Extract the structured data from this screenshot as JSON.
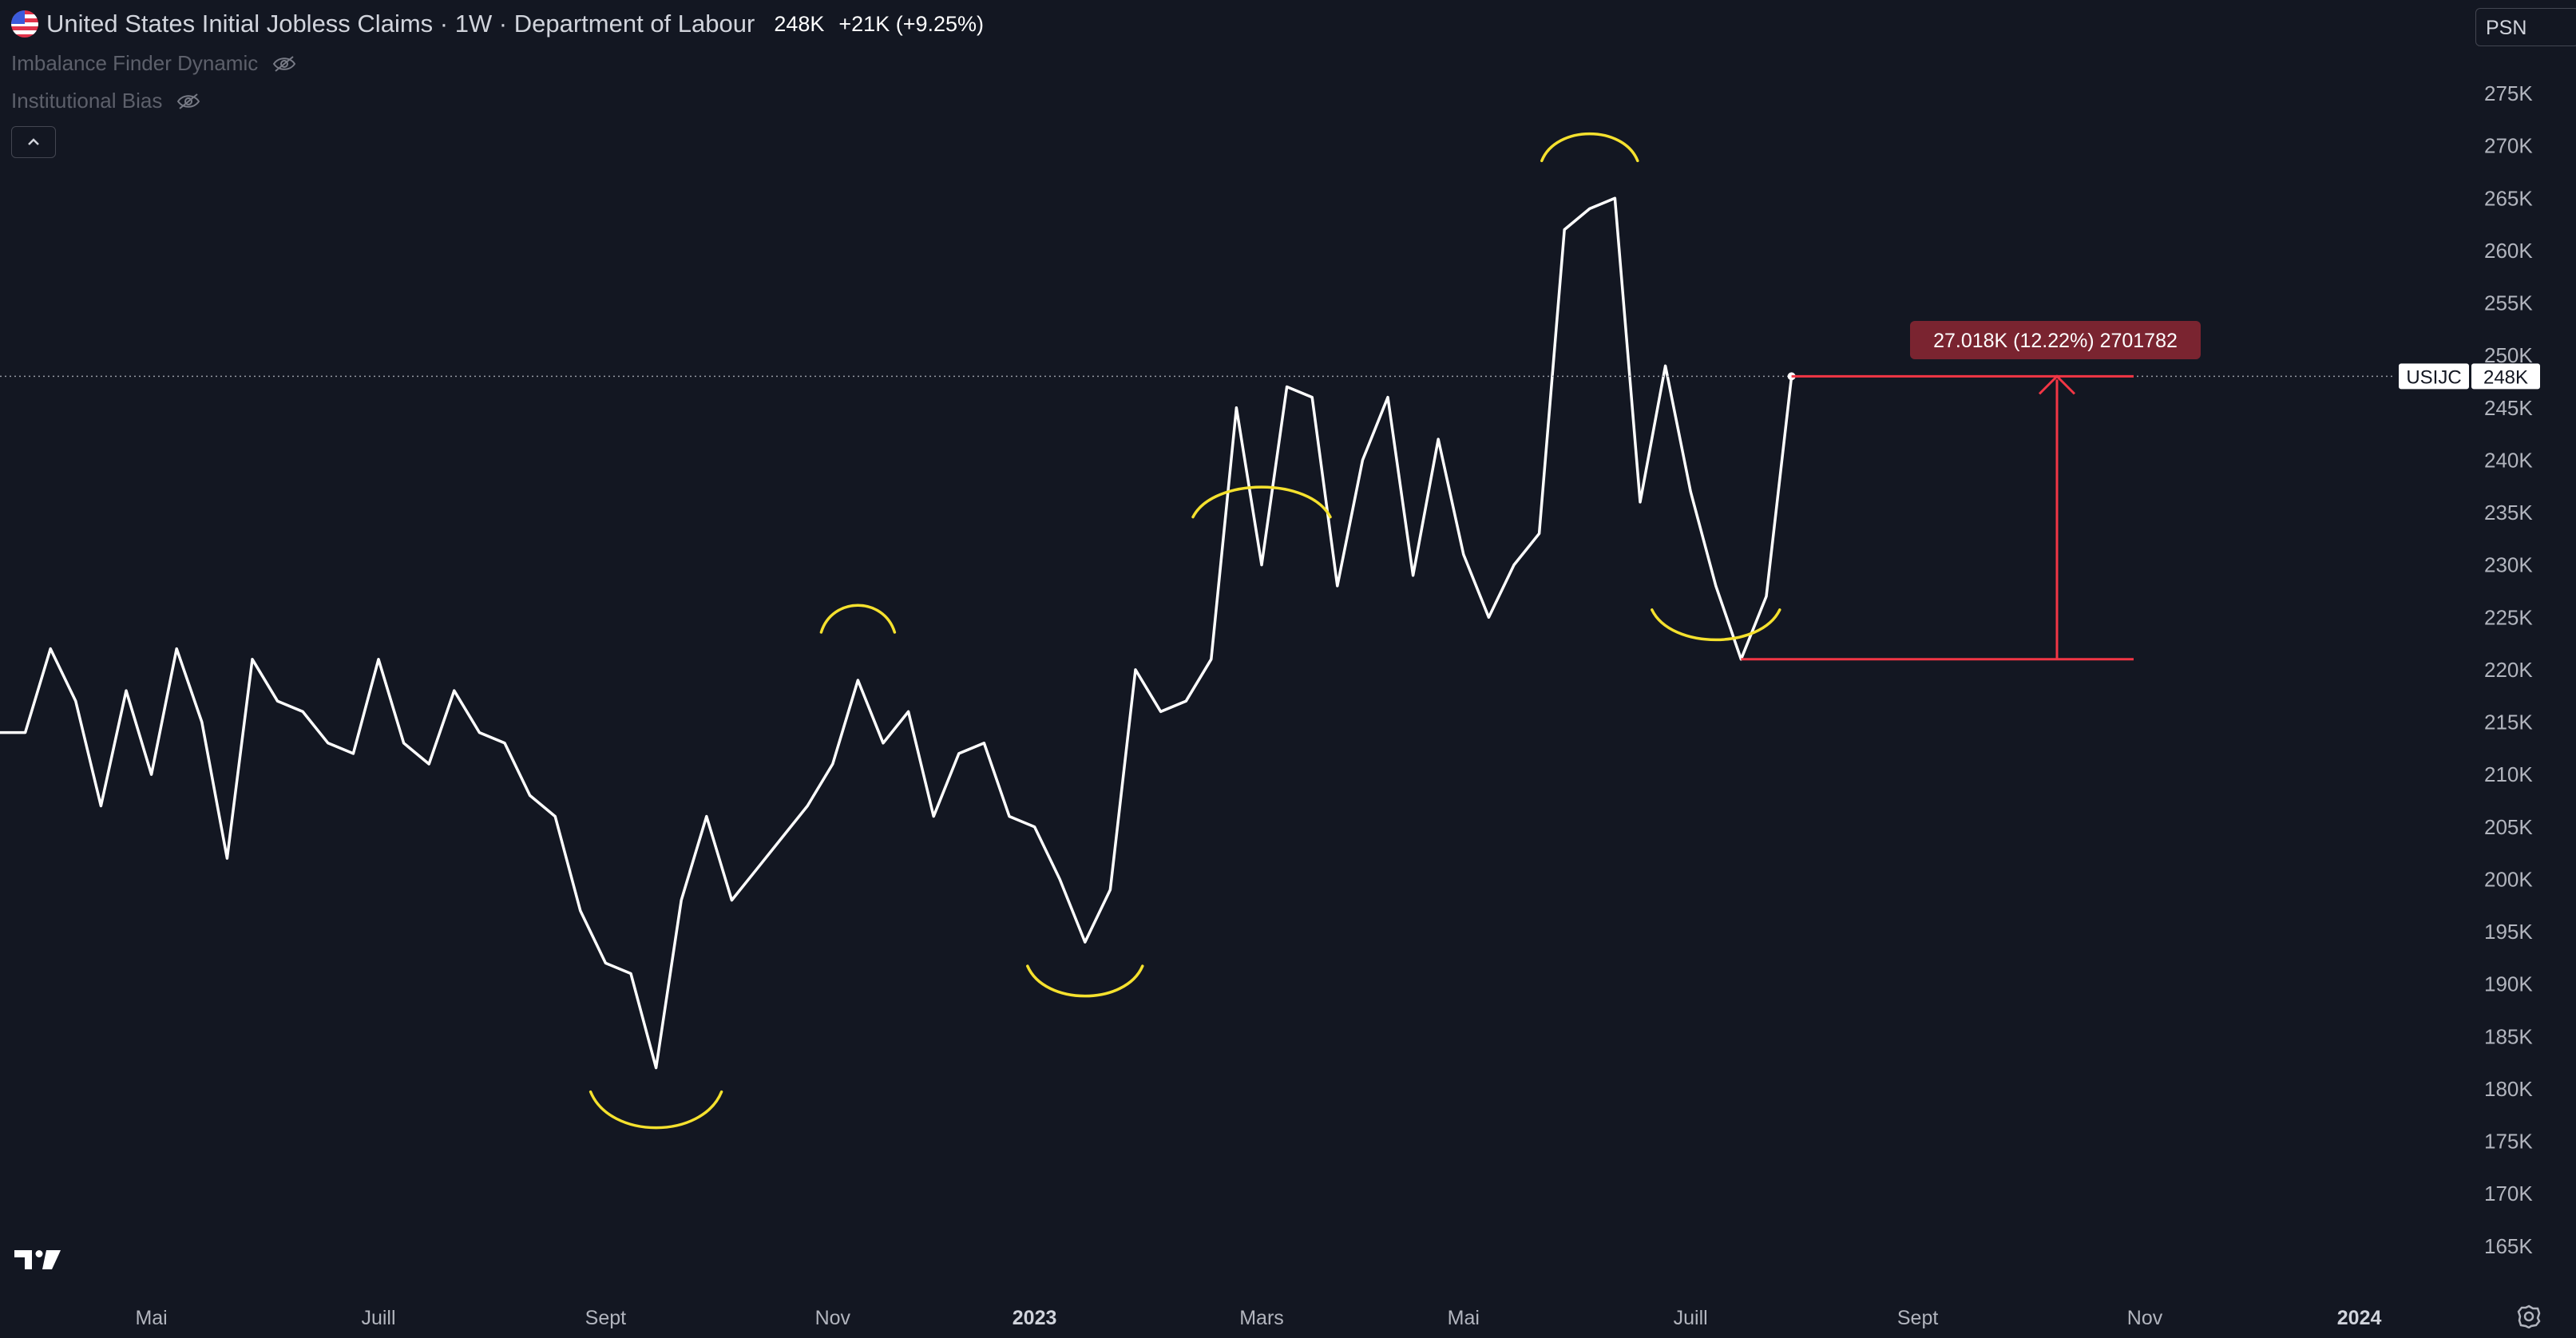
{
  "header": {
    "title": "United States Initial Jobless Claims · 1W · Department of Labour",
    "last_value": "248K",
    "change": "+21K (+9.25%)",
    "indicators": [
      {
        "name": "Imbalance Finder Dynamic",
        "icon": "eye-off-icon"
      },
      {
        "name": "Institutional Bias",
        "icon": "eye-off-icon"
      }
    ],
    "collapse_icon": "chevron-up-icon"
  },
  "top_right": {
    "label": "PSN"
  },
  "price_label": {
    "symbol": "USIJC",
    "value": "248K"
  },
  "measure_tooltip": {
    "text": "27.018K (12.22%) 2701782"
  },
  "colors": {
    "background": "#131722",
    "line": "#ffffff",
    "annotation": "#f5e12e",
    "measure": "#f23645",
    "tooltip_bg": "#7a2430",
    "axis_text": "#b2b5be"
  },
  "chart_data": {
    "type": "line",
    "title": "United States Initial Jobless Claims",
    "xlabel": "",
    "ylabel": "",
    "ylim": [
      160,
      278
    ],
    "y_unit": "K",
    "y_ticks": [
      "275K",
      "270K",
      "265K",
      "260K",
      "255K",
      "250K",
      "245K",
      "240K",
      "235K",
      "230K",
      "225K",
      "220K",
      "215K",
      "210K",
      "205K",
      "200K",
      "195K",
      "190K",
      "185K",
      "180K",
      "175K",
      "170K",
      "165K"
    ],
    "x_tick_labels": [
      "Mai",
      "Juill",
      "Sept",
      "Nov",
      "2023",
      "Mars",
      "Mai",
      "Juill",
      "Sept",
      "Nov",
      "2024"
    ],
    "x_tick_index": [
      6,
      15,
      24,
      33,
      41,
      50,
      58,
      67,
      76,
      85,
      93.5
    ],
    "series": [
      {
        "values": [
          214,
          214,
          222,
          217,
          207,
          218,
          210,
          222,
          215,
          202,
          221,
          217,
          216,
          213,
          212,
          221,
          213,
          211,
          218,
          214,
          213,
          208,
          206,
          197,
          192,
          191,
          182,
          198,
          206,
          198,
          201,
          204,
          207,
          211,
          219,
          213,
          216,
          206,
          212,
          213,
          206,
          205,
          200,
          194,
          199,
          220,
          216,
          217,
          221,
          245,
          230,
          247,
          246,
          228,
          240,
          246,
          229,
          242,
          231,
          225,
          230,
          233,
          262,
          264,
          265,
          236,
          249,
          237,
          228,
          221,
          227,
          248
        ]
      }
    ],
    "last_point_index": 71,
    "measure": {
      "from_value": 221,
      "to_value": 248,
      "delta": "27.018K",
      "percent": "12.22%"
    }
  }
}
